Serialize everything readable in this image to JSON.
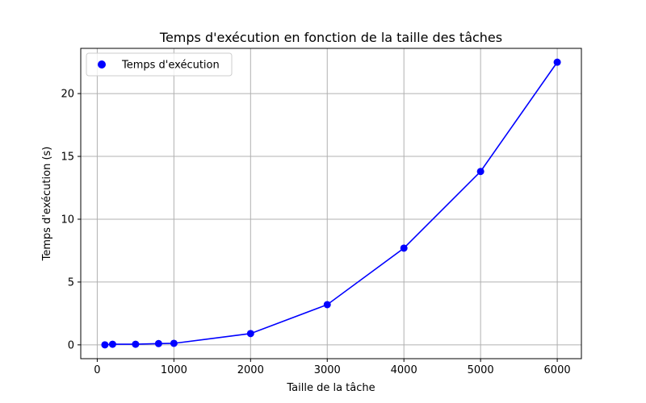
{
  "chart_data": {
    "type": "line",
    "title": "Temps d'exécution en fonction de la taille des tâches",
    "xlabel": "Taille de la tâche",
    "ylabel": "Temps d'exécution (s)",
    "xlim": [
      -215,
      6315
    ],
    "ylim": [
      -1.1,
      23.6
    ],
    "xticks": [
      0,
      1000,
      2000,
      3000,
      4000,
      5000,
      6000
    ],
    "yticks": [
      0,
      5,
      10,
      15,
      20
    ],
    "grid": true,
    "legend_position": "upper-left",
    "series": [
      {
        "name": "Temps d'exécution",
        "color": "#0000ff",
        "marker": "circle",
        "x": [
          100,
          200,
          500,
          800,
          1000,
          2000,
          3000,
          4000,
          5000,
          6000
        ],
        "y": [
          0.0,
          0.05,
          0.05,
          0.1,
          0.12,
          0.9,
          3.2,
          7.7,
          13.8,
          22.5
        ]
      }
    ]
  }
}
